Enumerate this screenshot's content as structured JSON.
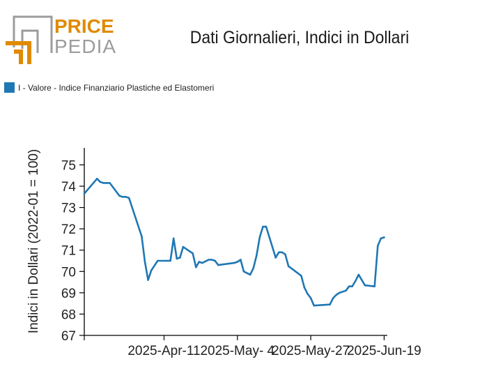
{
  "logo": {
    "word1": "PRICE",
    "word2": "PEDIA",
    "accent_color": "#e08a00",
    "gray_color": "#9c9c9c"
  },
  "chart_data": {
    "type": "line",
    "title": "Dati Giornalieri, Indici in Dollari",
    "ylabel": "Indici in Dollari (2022-01 = 100)",
    "xlabel": "",
    "ylim": [
      67,
      75.8
    ],
    "yticks": [
      67,
      68,
      69,
      70,
      71,
      72,
      73,
      74,
      75
    ],
    "xlim": [
      "2025-03-17",
      "2025-06-20"
    ],
    "xticks": [
      "2025-03-17",
      "2025-04-11",
      "2025-05-04",
      "2025-05-27",
      "2025-06-19"
    ],
    "xtick_labels": [
      "",
      "2025-Apr-11",
      "2025-May- 4",
      "2025-May-27",
      "2025-Jun-19"
    ],
    "legend_position": "top-left",
    "grid": false,
    "series": [
      {
        "name": "I - Valore - Indice Finanziario Plastiche ed Elastomeri",
        "color": "#1f77b4",
        "x": [
          "2025-03-17",
          "2025-03-21",
          "2025-03-22",
          "2025-03-23",
          "2025-03-24",
          "2025-03-25",
          "2025-03-28",
          "2025-03-29",
          "2025-03-30",
          "2025-03-31",
          "2025-04-04",
          "2025-04-05",
          "2025-04-06",
          "2025-04-07",
          "2025-04-09",
          "2025-04-12",
          "2025-04-13",
          "2025-04-14",
          "2025-04-15",
          "2025-04-16",
          "2025-04-17",
          "2025-04-19",
          "2025-04-20",
          "2025-04-21",
          "2025-04-22",
          "2025-04-23",
          "2025-04-25",
          "2025-04-26",
          "2025-04-27",
          "2025-04-28",
          "2025-05-03",
          "2025-05-04",
          "2025-05-05",
          "2025-05-06",
          "2025-05-08",
          "2025-05-09",
          "2025-05-10",
          "2025-05-11",
          "2025-05-12",
          "2025-05-13",
          "2025-05-16",
          "2025-05-17",
          "2025-05-18",
          "2025-05-19",
          "2025-05-20",
          "2025-05-24",
          "2025-05-25",
          "2025-05-26",
          "2025-05-27",
          "2025-05-28",
          "2025-06-02",
          "2025-06-03",
          "2025-06-04",
          "2025-06-05",
          "2025-06-06",
          "2025-06-07",
          "2025-06-08",
          "2025-06-09",
          "2025-06-10",
          "2025-06-11",
          "2025-06-13",
          "2025-06-16",
          "2025-06-17",
          "2025-06-18",
          "2025-06-19"
        ],
        "values": [
          73.65,
          74.35,
          74.2,
          74.15,
          74.15,
          74.15,
          73.55,
          73.5,
          73.5,
          73.45,
          71.65,
          70.45,
          69.6,
          70.05,
          70.5,
          70.5,
          70.5,
          71.55,
          70.6,
          70.65,
          71.15,
          70.95,
          70.85,
          70.2,
          70.45,
          70.4,
          70.55,
          70.55,
          70.5,
          70.3,
          70.4,
          70.45,
          70.55,
          70.0,
          69.85,
          70.15,
          70.75,
          71.6,
          72.1,
          72.1,
          70.65,
          70.9,
          70.9,
          70.8,
          70.25,
          69.8,
          69.25,
          68.95,
          68.75,
          68.4,
          68.45,
          68.75,
          68.9,
          69.0,
          69.05,
          69.1,
          69.3,
          69.3,
          69.55,
          69.85,
          69.35,
          69.3,
          71.2,
          71.55,
          71.6
        ]
      }
    ]
  }
}
